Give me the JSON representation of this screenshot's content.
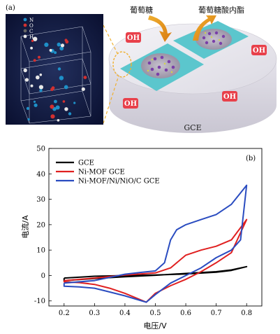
{
  "panel_a": {
    "label": "(a)",
    "legend": [
      "N",
      "O",
      "C",
      "H"
    ],
    "legend_colors": [
      "#1e90c8",
      "#d23030",
      "#666666",
      "#e8e8e8"
    ],
    "reactant": "葡萄糖",
    "product": "葡萄糖酸内酯",
    "oh_labels": [
      "OH",
      "OH",
      "OH",
      "OH"
    ],
    "electrode": "GCE"
  },
  "panel_b": {
    "label": "(b)"
  },
  "chart_data": {
    "type": "line",
    "xlabel": "电压/V",
    "ylabel": "电流/A",
    "xlim": [
      0.15,
      0.85
    ],
    "ylim": [
      -12,
      50
    ],
    "xticks": [
      "0.2",
      "0.3",
      "0.4",
      "0.5",
      "0.6",
      "0.7",
      "0.8"
    ],
    "yticks": [
      "-10",
      "0",
      "10",
      "20",
      "30",
      "40",
      "50"
    ],
    "legend_position": "top-left",
    "series": [
      {
        "name": "GCE",
        "color": "#000000",
        "x": [
          0.2,
          0.3,
          0.4,
          0.5,
          0.6,
          0.7,
          0.75,
          0.8,
          0.8,
          0.75,
          0.7,
          0.6,
          0.5,
          0.4,
          0.3,
          0.2,
          0.2
        ],
        "y": [
          -1,
          -0.3,
          0,
          0.2,
          0.6,
          1.3,
          2,
          3.5,
          3.5,
          2.2,
          1.5,
          0.8,
          0.1,
          -0.5,
          -1.2,
          -2,
          -1
        ]
      },
      {
        "name": "Ni-MOF GCE",
        "color": "#e02020",
        "x": [
          0.2,
          0.3,
          0.4,
          0.45,
          0.5,
          0.55,
          0.6,
          0.65,
          0.7,
          0.75,
          0.8,
          0.8,
          0.75,
          0.7,
          0.65,
          0.6,
          0.55,
          0.5,
          0.47,
          0.45,
          0.4,
          0.35,
          0.3,
          0.25,
          0.2,
          0.2
        ],
        "y": [
          -2,
          -1,
          0.2,
          0.6,
          1,
          3,
          8,
          10,
          11.5,
          14,
          22,
          22,
          9,
          5,
          1.5,
          -1.5,
          -4,
          -7,
          -10.5,
          -9.5,
          -7,
          -5,
          -3.5,
          -2.8,
          -2.5,
          -2
        ]
      },
      {
        "name": "Ni-MOF/Ni/NiO/C GCE",
        "color": "#2a4cc0",
        "x": [
          0.2,
          0.3,
          0.4,
          0.45,
          0.5,
          0.53,
          0.55,
          0.57,
          0.6,
          0.65,
          0.7,
          0.75,
          0.8,
          0.8,
          0.78,
          0.75,
          0.7,
          0.65,
          0.6,
          0.55,
          0.5,
          0.47,
          0.45,
          0.4,
          0.35,
          0.3,
          0.25,
          0.2,
          0.2
        ],
        "y": [
          -3,
          -2,
          0.5,
          1.2,
          1.8,
          5,
          14,
          18,
          20,
          22,
          24,
          28,
          35.5,
          35.5,
          14,
          10,
          7,
          3,
          0,
          -3,
          -7.5,
          -10.5,
          -9.8,
          -8,
          -6.5,
          -5,
          -4.5,
          -4.2,
          -3
        ]
      }
    ]
  }
}
